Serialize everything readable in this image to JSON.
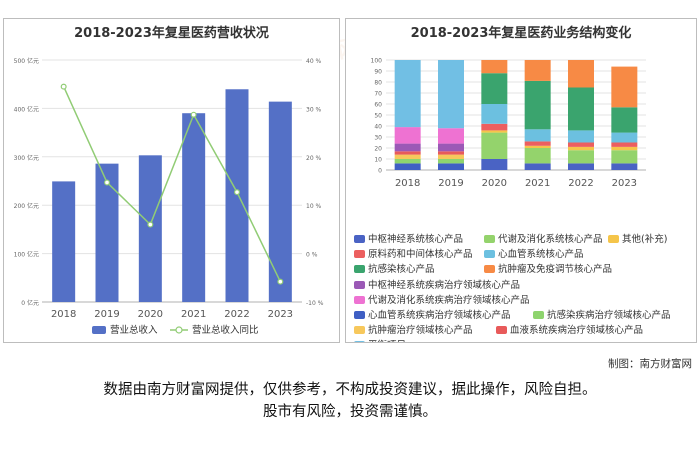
{
  "credit": "制图：南方财富网",
  "disclaimer": {
    "line1": "数据由南方财富网提供，仅供参考，不构成投资建议，据此操作，风险自担。",
    "line2": "股市有风险，投资需谨慎。"
  },
  "watermark": "南方财富网",
  "colors": {
    "bar": "#5470c6",
    "line": "#91cc75",
    "line_point": "#91cc75"
  },
  "chart_data": [
    {
      "type": "bar+line",
      "title": "2018-2023年复星医药营收状况",
      "categories": [
        "2018",
        "2019",
        "2020",
        "2021",
        "2022",
        "2023"
      ],
      "y_left": {
        "ticks": [
          "0 亿元",
          "100 亿元",
          "200 亿元",
          "300 亿元",
          "400 亿元",
          "500 亿元"
        ],
        "range": [
          0,
          500
        ]
      },
      "y_right": {
        "ticks": [
          "-10 %",
          "0 %",
          "10 %",
          "20 %",
          "30 %",
          "40 %"
        ],
        "range": [
          -10,
          40
        ]
      },
      "series": [
        {
          "name": "营业总收入",
          "type": "bar",
          "axis": "left",
          "values": [
            249.18,
            285.85,
            303.07,
            390.05,
            439.52,
            413.99
          ]
        },
        {
          "name": "营业总收入同比",
          "type": "line",
          "axis": "right",
          "values": [
            34.5,
            14.7,
            6.0,
            28.7,
            12.7,
            -5.8
          ]
        }
      ],
      "legend": "bottom",
      "grid": true
    },
    {
      "type": "stacked-bar-percent",
      "title": "2018-2023年复星医药业务结构变化",
      "categories": [
        "2018",
        "2019",
        "2020",
        "2021",
        "2022",
        "2023"
      ],
      "y_ticks": [
        "0",
        "10",
        "20",
        "30",
        "40",
        "50",
        "60",
        "70",
        "80",
        "90",
        "100"
      ],
      "ylim": [
        0,
        100
      ],
      "series": [
        {
          "name": "心血管系统疾病治疗领域核心产品",
          "color": "#3f5fc4",
          "values": [
            6,
            6,
            0,
            0,
            0,
            0
          ]
        },
        {
          "name": "抗感染疾病治疗领域核心产品",
          "color": "#8ed46e",
          "values": [
            4,
            4,
            0,
            0,
            0,
            0
          ]
        },
        {
          "name": "抗肿瘤治疗领域核心产品",
          "color": "#f7c85c",
          "values": [
            4,
            4,
            0,
            0,
            0,
            0
          ]
        },
        {
          "name": "血液系统疾病治疗领域核心产品",
          "color": "#e85a5a",
          "values": [
            3,
            3,
            0,
            0,
            0,
            0
          ]
        },
        {
          "name": "中枢神经系统疾病治疗领域核心产品",
          "color": "#9b59b6",
          "values": [
            7,
            7,
            0,
            0,
            0,
            0
          ]
        },
        {
          "name": "代谢及消化系统疾病治疗领域核心产品",
          "color": "#ee72d2",
          "values": [
            15,
            14,
            0,
            0,
            0,
            0
          ]
        },
        {
          "name": "中枢神经系统核心产品",
          "color": "#4a63c4",
          "values": [
            0,
            0,
            10,
            6,
            6,
            6
          ]
        },
        {
          "name": "代谢及消化系统核心产品",
          "color": "#94d36c",
          "values": [
            0,
            0,
            24,
            14,
            12,
            12
          ]
        },
        {
          "name": "其他(补充)",
          "color": "#f5c54a",
          "values": [
            0,
            0,
            2,
            2,
            3,
            3
          ]
        },
        {
          "name": "原料药和中间体核心产品",
          "color": "#ec5f5f",
          "values": [
            0,
            0,
            6,
            4,
            4,
            4
          ]
        },
        {
          "name": "心血管系统核心产品",
          "color": "#6cc0e0",
          "values": [
            0,
            0,
            18,
            11,
            11,
            9
          ]
        },
        {
          "name": "抗感染核心产品",
          "color": "#3aa46e",
          "values": [
            0,
            0,
            28,
            44,
            39,
            23
          ]
        },
        {
          "name": "抗肿瘤及免疫调节核心产品",
          "color": "#f78a45",
          "values": [
            0,
            0,
            12,
            19,
            25,
            37
          ]
        },
        {
          "name": "平衡项目",
          "color": "#71bfe4",
          "values": [
            61,
            62,
            0,
            0,
            0,
            0
          ]
        }
      ],
      "legend_order": [
        "中枢神经系统核心产品",
        "代谢及消化系统核心产品",
        "其他(补充)",
        "原料药和中间体核心产品",
        "心血管系统核心产品",
        "抗感染核心产品",
        "抗肿瘤及免疫调节核心产品",
        "中枢神经系统疾病治疗领域核心产品",
        "代谢及消化系统疾病治疗领域核心产品",
        "心血管系统疾病治疗领域核心产品",
        "抗感染疾病治疗领域核心产品",
        "抗肿瘤治疗领域核心产品",
        "血液系统疾病治疗领域核心产品",
        "平衡项目"
      ],
      "legend": "bottom",
      "grid": true
    }
  ]
}
